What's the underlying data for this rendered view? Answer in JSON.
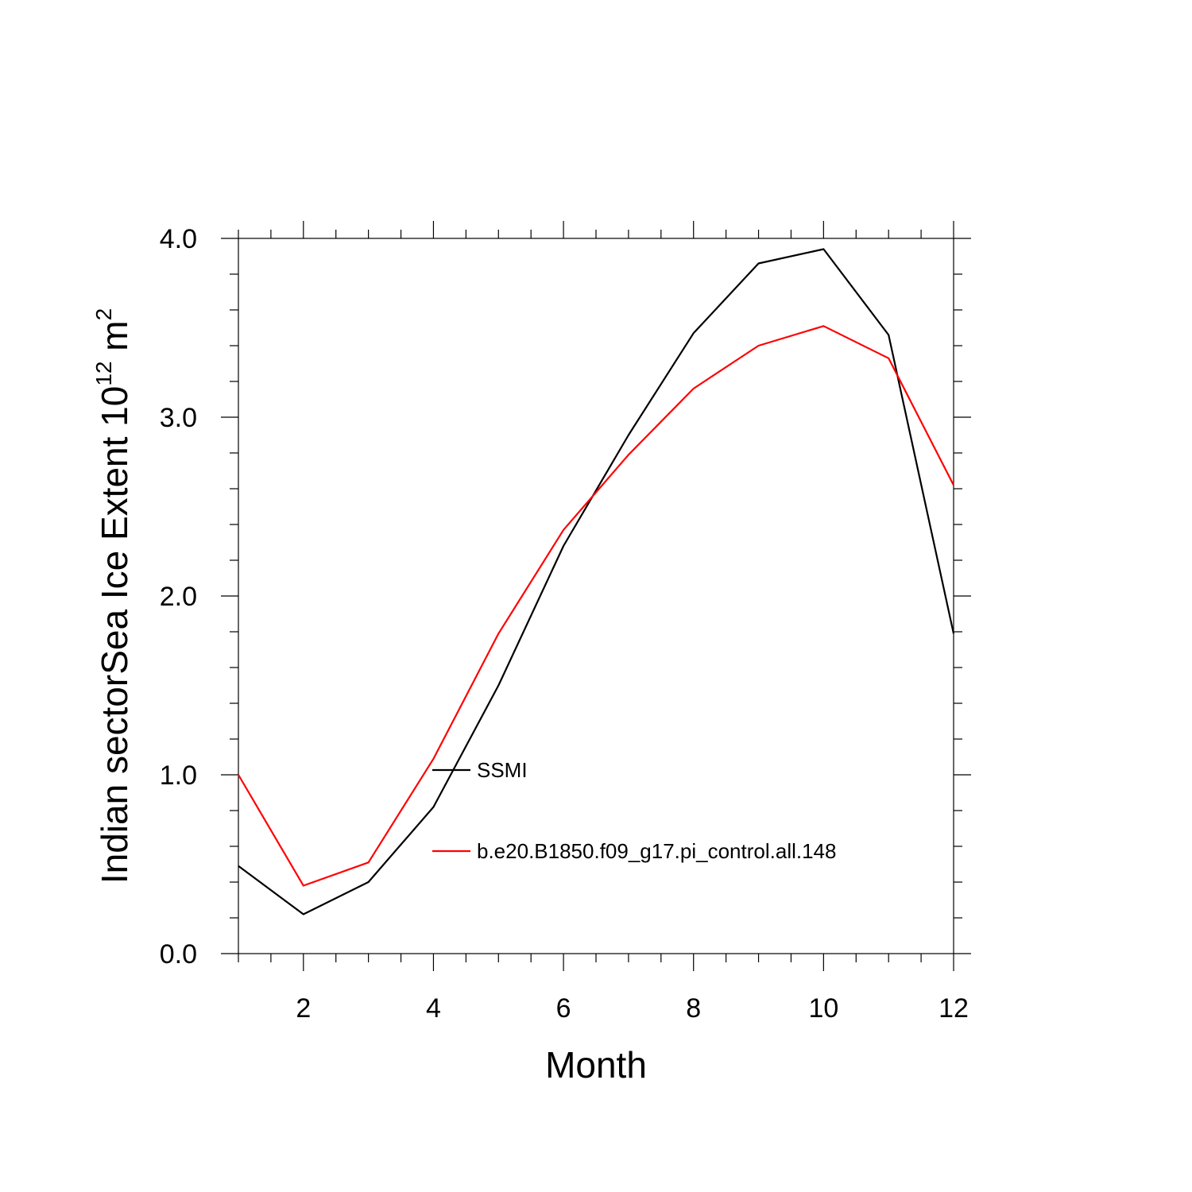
{
  "chart_data": {
    "type": "line",
    "xlabel": "Month",
    "ylabel": {
      "prefix": "Indian sectorSea Ice Extent 10",
      "exponent": "12",
      "unit": " m",
      "unit_exponent": "2"
    },
    "xlim": [
      1,
      12
    ],
    "ylim": [
      0,
      4
    ],
    "x_ticks": [
      2,
      4,
      6,
      8,
      10,
      12
    ],
    "y_ticks": [
      0,
      1,
      2,
      3,
      4
    ],
    "y_tick_labels": [
      "0.0",
      "1.0",
      "2.0",
      "3.0",
      "4.0"
    ],
    "x": [
      1,
      2,
      3,
      4,
      5,
      6,
      7,
      8,
      9,
      10,
      11,
      12
    ],
    "series": [
      {
        "name": "SSMI",
        "color": "#000000",
        "values": [
          0.49,
          0.22,
          0.4,
          0.82,
          1.5,
          2.28,
          2.9,
          3.47,
          3.86,
          3.94,
          3.46,
          1.79
        ]
      },
      {
        "name": "b.e20.B1850.f09_g17.pi_control.all.148",
        "color": "#ff0000",
        "values": [
          1.0,
          0.38,
          0.51,
          1.09,
          1.79,
          2.37,
          2.79,
          3.16,
          3.4,
          3.51,
          3.33,
          2.62
        ]
      }
    ],
    "grid": false,
    "legend_position": "center"
  }
}
